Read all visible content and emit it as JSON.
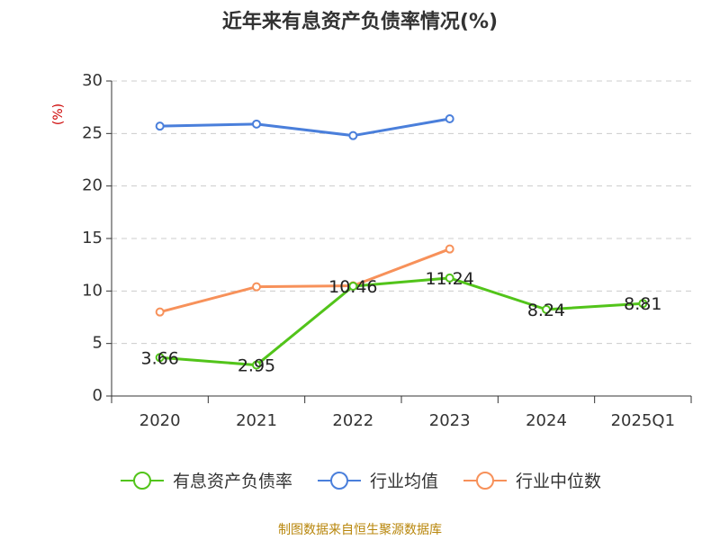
{
  "chart_data": {
    "type": "line",
    "title": "近年来有息资产负债率情况(%)",
    "ylabel": "(%)",
    "categories": [
      "2020",
      "2021",
      "2022",
      "2023",
      "2024",
      "2025Q1"
    ],
    "ylim": [
      0,
      30
    ],
    "yticks": [
      0,
      5,
      10,
      15,
      20,
      25,
      30
    ],
    "grid": true,
    "legend_position": "bottom",
    "series": [
      {
        "name": "有息资产负债率",
        "color": "#52c41a",
        "values": [
          3.66,
          2.95,
          10.46,
          11.24,
          8.24,
          8.81
        ],
        "labels": [
          "3.66",
          "2.95",
          "10.46",
          "11.24",
          "8.24",
          "8.81"
        ]
      },
      {
        "name": "行业均值",
        "color": "#4a7fdb",
        "values": [
          25.7,
          25.9,
          24.8,
          26.4,
          null,
          null
        ]
      },
      {
        "name": "行业中位数",
        "color": "#f7915a",
        "values": [
          8.0,
          10.4,
          10.5,
          14.0,
          null,
          null
        ]
      }
    ]
  },
  "source": "制图数据来自恒生聚源数据库"
}
